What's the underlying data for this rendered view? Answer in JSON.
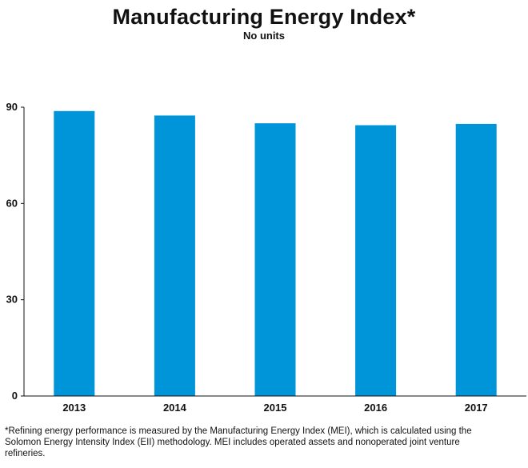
{
  "chart_data": {
    "type": "bar",
    "title": "Manufacturing Energy Index*",
    "subtitle": "No units",
    "categories": [
      "2013",
      "2014",
      "2015",
      "2016",
      "2017"
    ],
    "values": [
      88.8,
      87.4,
      85.0,
      84.4,
      84.8
    ],
    "ylim": [
      0,
      90
    ],
    "yticks": [
      0,
      30,
      60,
      90
    ],
    "bar_color": "#0095d9",
    "grid": false,
    "legend": "none"
  },
  "footnote": "*Refining energy performance is measured by the Manufacturing Energy Index (MEI), which is calculated using the Solomon Energy Intensity Index (EII) methodology. MEI includes operated assets and nonoperated joint venture refineries."
}
